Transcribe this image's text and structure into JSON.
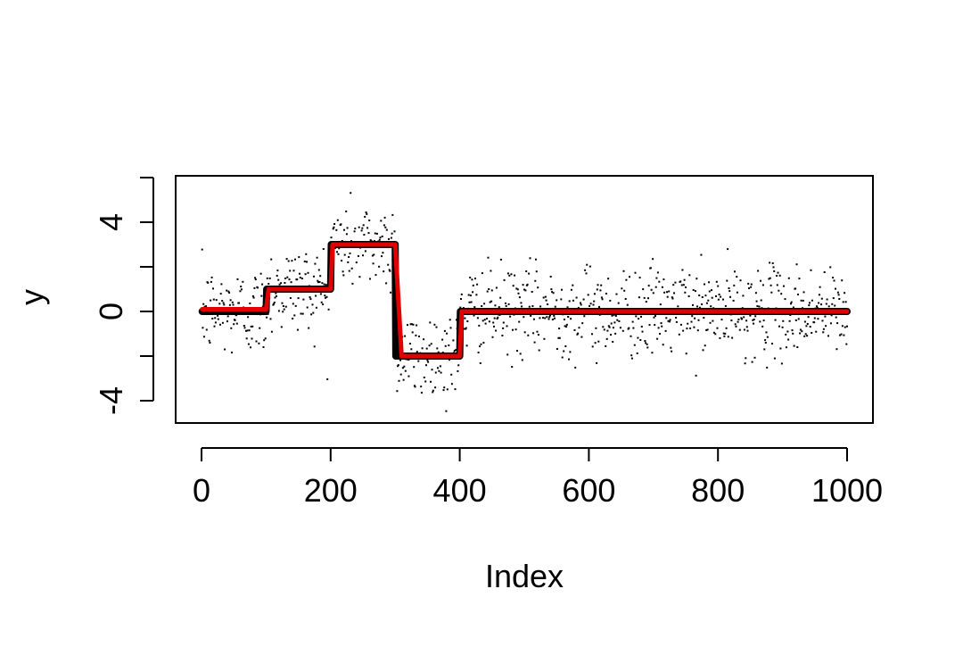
{
  "chart_data": {
    "type": "line",
    "title": "",
    "xlabel": "Index",
    "ylabel": "y",
    "xlim": [
      0,
      1000
    ],
    "ylim": [
      -5,
      6
    ],
    "grid": false,
    "x_ticks": [
      {
        "value": 0,
        "label": "0"
      },
      {
        "value": 200,
        "label": "200"
      },
      {
        "value": 400,
        "label": "400"
      },
      {
        "value": 600,
        "label": "600"
      },
      {
        "value": 800,
        "label": "800"
      },
      {
        "value": 1000,
        "label": "1000"
      }
    ],
    "y_ticks": [
      {
        "value": -4,
        "label": "-4"
      },
      {
        "value": 0,
        "label": "0"
      },
      {
        "value": 4,
        "label": "4"
      }
    ],
    "y_minor_ticks": [
      -2,
      2,
      6
    ],
    "points": {
      "n": 1000,
      "noise_sd": 1.0,
      "color": "#000000"
    },
    "series": [
      {
        "color": "#000000",
        "x": [
          1,
          100,
          101,
          200,
          201,
          300,
          301,
          400,
          401,
          1000
        ],
        "values": [
          0,
          0,
          1,
          1,
          3,
          3,
          -2,
          -2,
          0,
          0
        ]
      },
      {
        "color": "#e00000",
        "x": [
          1,
          100,
          104,
          200,
          203,
          300,
          310,
          400,
          403,
          1000
        ],
        "values": [
          0.1,
          0.1,
          1,
          1,
          3,
          3,
          -2,
          -2,
          0,
          0
        ]
      }
    ]
  }
}
